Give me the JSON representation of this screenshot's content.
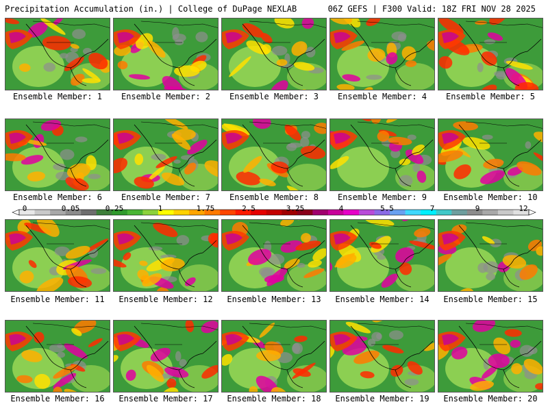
{
  "header": {
    "left": "Precipitation Accumulation (in.) | College of DuPage NEXLAB",
    "right": "06Z GEFS | F300 Valid: 18Z FRI NOV 28 2025"
  },
  "colorbar": {
    "labels": [
      "0",
      "0.05",
      "0.25",
      "1",
      "1.75",
      "2.5",
      "3.25",
      "4",
      "5.5",
      "7",
      "9",
      "12"
    ],
    "colors": [
      "#e8e8e8",
      "#c9c9c9",
      "#a8a8a8",
      "#8c8c8c",
      "#6e6e6e",
      "#3d7f3a",
      "#2f9a2c",
      "#49b534",
      "#8cd23c",
      "#ffff00",
      "#ffd200",
      "#ffa500",
      "#ff7a00",
      "#ff4500",
      "#ff1a00",
      "#e60000",
      "#c40000",
      "#a00000",
      "#8a001a",
      "#a0006e",
      "#c8009a",
      "#e600c8",
      "#b84ad8",
      "#8a6ae6",
      "#6aa0f0",
      "#40d8ff",
      "#00f0ff",
      "#40c8c8",
      "#6e9e9e",
      "#8c8c8c",
      "#a8a8a8",
      "#c9c9c9",
      "#e0e0e0"
    ]
  },
  "panels": [
    {
      "caption": "Ensemble Member: 1"
    },
    {
      "caption": "Ensemble Member: 2"
    },
    {
      "caption": "Ensemble Member: 3"
    },
    {
      "caption": "Ensemble Member: 4"
    },
    {
      "caption": "Ensemble Member: 5"
    },
    {
      "caption": "Ensemble Member: 6"
    },
    {
      "caption": "Ensemble Member: 7"
    },
    {
      "caption": "Ensemble Member: 8"
    },
    {
      "caption": "Ensemble Member: 9"
    },
    {
      "caption": "Ensemble Member: 10"
    },
    {
      "caption": "Ensemble Member: 11"
    },
    {
      "caption": "Ensemble Member: 12"
    },
    {
      "caption": "Ensemble Member: 13"
    },
    {
      "caption": "Ensemble Member: 14"
    },
    {
      "caption": "Ensemble Member: 15"
    },
    {
      "caption": "Ensemble Member: 16"
    },
    {
      "caption": "Ensemble Member: 17"
    },
    {
      "caption": "Ensemble Member: 18"
    },
    {
      "caption": "Ensemble Member: 19"
    },
    {
      "caption": "Ensemble Member: 20"
    }
  ]
}
